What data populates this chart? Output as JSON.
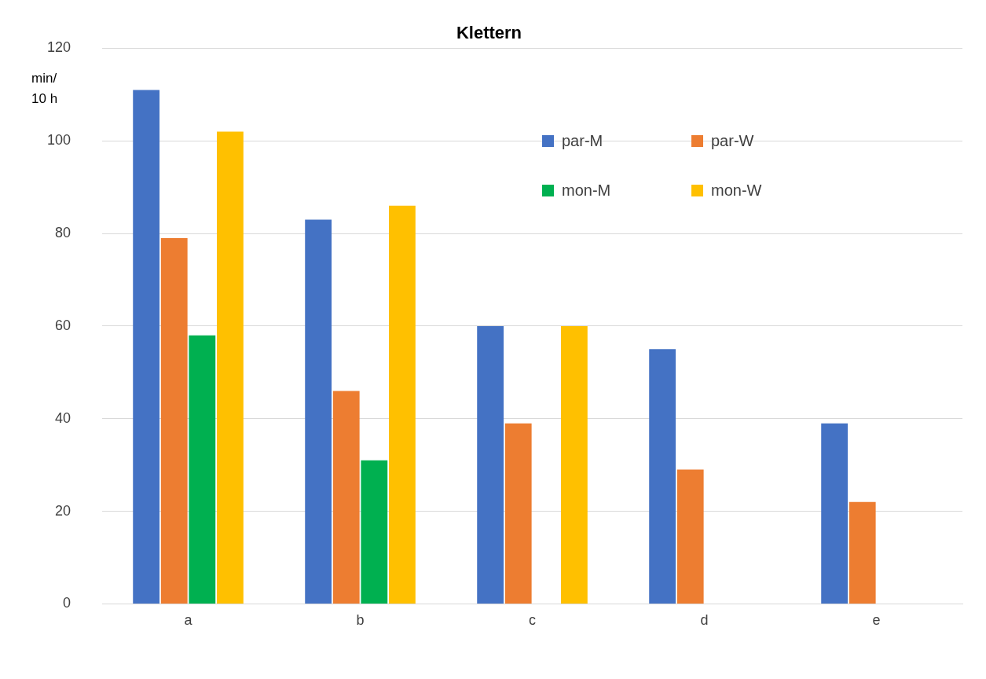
{
  "chart_data": {
    "type": "bar",
    "title": "Klettern",
    "ylabel": "min/ 10 h",
    "categories": [
      "a",
      "b",
      "c",
      "d",
      "e"
    ],
    "series": [
      {
        "name": "par-M",
        "color": "#4472c4",
        "values": [
          111,
          83,
          60,
          55,
          39
        ]
      },
      {
        "name": "par-W",
        "color": "#ed7d31",
        "values": [
          79,
          46,
          39,
          29,
          22
        ]
      },
      {
        "name": "mon-M",
        "color": "#00b050",
        "values": [
          58,
          31,
          null,
          null,
          null
        ]
      },
      {
        "name": "mon-W",
        "color": "#ffc000",
        "values": [
          102,
          86,
          60,
          null,
          null
        ]
      }
    ],
    "ylim": [
      0,
      120
    ],
    "yticks": [
      0,
      20,
      40,
      60,
      80,
      100,
      120
    ],
    "grid": "y",
    "legend": "top right"
  }
}
